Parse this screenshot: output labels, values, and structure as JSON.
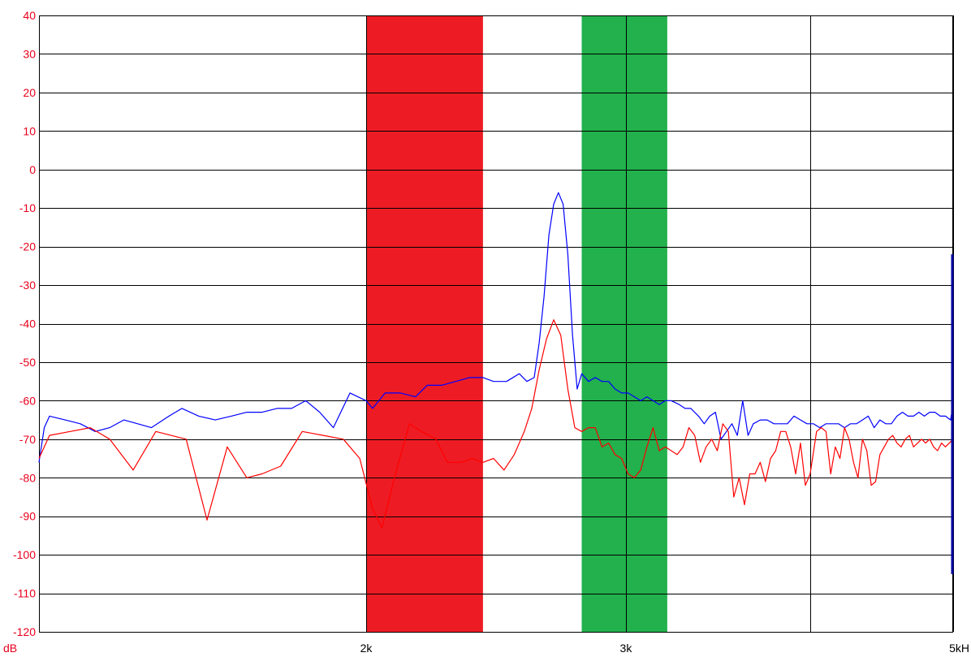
{
  "chart_data": {
    "type": "line",
    "title": "",
    "xlabel": "kH",
    "ylabel": "dB",
    "xlim": [
      1200,
      5000
    ],
    "ylim": [
      -120,
      40
    ],
    "x_scale": "log",
    "grid": true,
    "x_ticks": [
      {
        "value": 2000,
        "label": "2k"
      },
      {
        "value": 3000,
        "label": "3k"
      },
      {
        "value": 4000,
        "label": ""
      },
      {
        "value": 5000,
        "label": "5kH"
      }
    ],
    "y_ticks": [
      40,
      30,
      20,
      10,
      0,
      -10,
      -20,
      -30,
      -40,
      -50,
      -60,
      -70,
      -80,
      -90,
      -100,
      -110,
      -120
    ],
    "bands": [
      {
        "x_start": 2000,
        "x_end": 2400,
        "color": "#ed1c24"
      },
      {
        "x_start": 2800,
        "x_end": 3200,
        "color": "#22b14c"
      }
    ],
    "marker": {
      "x": 5000,
      "y_range": [
        -105,
        -22
      ],
      "color": "#0000a0"
    },
    "series": [
      {
        "color": "#0000ff",
        "points": [
          [
            1200,
            -76
          ],
          [
            1210,
            -67
          ],
          [
            1220,
            -64
          ],
          [
            1250,
            -65
          ],
          [
            1280,
            -66
          ],
          [
            1310,
            -68
          ],
          [
            1340,
            -67
          ],
          [
            1370,
            -65
          ],
          [
            1400,
            -66
          ],
          [
            1430,
            -67
          ],
          [
            1470,
            -64
          ],
          [
            1500,
            -62
          ],
          [
            1540,
            -64
          ],
          [
            1580,
            -65
          ],
          [
            1620,
            -64
          ],
          [
            1660,
            -63
          ],
          [
            1700,
            -63
          ],
          [
            1740,
            -62
          ],
          [
            1780,
            -62
          ],
          [
            1820,
            -60
          ],
          [
            1860,
            -63
          ],
          [
            1900,
            -67
          ],
          [
            1950,
            -58
          ],
          [
            2000,
            -60
          ],
          [
            2020,
            -62
          ],
          [
            2060,
            -58
          ],
          [
            2110,
            -58
          ],
          [
            2160,
            -59
          ],
          [
            2200,
            -56
          ],
          [
            2250,
            -56
          ],
          [
            2300,
            -55
          ],
          [
            2350,
            -54
          ],
          [
            2400,
            -54
          ],
          [
            2440,
            -55
          ],
          [
            2490,
            -55
          ],
          [
            2540,
            -53
          ],
          [
            2570,
            -55
          ],
          [
            2600,
            -54
          ],
          [
            2620,
            -45
          ],
          [
            2640,
            -33
          ],
          [
            2660,
            -17
          ],
          [
            2680,
            -9
          ],
          [
            2700,
            -6
          ],
          [
            2720,
            -9
          ],
          [
            2740,
            -22
          ],
          [
            2760,
            -43
          ],
          [
            2780,
            -57
          ],
          [
            2800,
            -53
          ],
          [
            2830,
            -55
          ],
          [
            2860,
            -54
          ],
          [
            2890,
            -55
          ],
          [
            2920,
            -55
          ],
          [
            2950,
            -57
          ],
          [
            2980,
            -58
          ],
          [
            3010,
            -58
          ],
          [
            3040,
            -59
          ],
          [
            3070,
            -60
          ],
          [
            3100,
            -59
          ],
          [
            3130,
            -60
          ],
          [
            3160,
            -61
          ],
          [
            3190,
            -60
          ],
          [
            3220,
            -60
          ],
          [
            3260,
            -61
          ],
          [
            3290,
            -62
          ],
          [
            3320,
            -62
          ],
          [
            3360,
            -64
          ],
          [
            3390,
            -66
          ],
          [
            3420,
            -64
          ],
          [
            3450,
            -63
          ],
          [
            3480,
            -70
          ],
          [
            3510,
            -68
          ],
          [
            3540,
            -66
          ],
          [
            3570,
            -69
          ],
          [
            3600,
            -60
          ],
          [
            3630,
            -69
          ],
          [
            3660,
            -66
          ],
          [
            3700,
            -65
          ],
          [
            3740,
            -65
          ],
          [
            3780,
            -66
          ],
          [
            3820,
            -66
          ],
          [
            3860,
            -66
          ],
          [
            3900,
            -64
          ],
          [
            3940,
            -65
          ],
          [
            3980,
            -66
          ],
          [
            4020,
            -66
          ],
          [
            4060,
            -67
          ],
          [
            4100,
            -66
          ],
          [
            4140,
            -66
          ],
          [
            4180,
            -66
          ],
          [
            4220,
            -67
          ],
          [
            4260,
            -66
          ],
          [
            4300,
            -66
          ],
          [
            4340,
            -65
          ],
          [
            4380,
            -64
          ],
          [
            4420,
            -67
          ],
          [
            4460,
            -65
          ],
          [
            4500,
            -66
          ],
          [
            4540,
            -66
          ],
          [
            4580,
            -64
          ],
          [
            4620,
            -63
          ],
          [
            4660,
            -64
          ],
          [
            4700,
            -64
          ],
          [
            4740,
            -63
          ],
          [
            4780,
            -64
          ],
          [
            4820,
            -63
          ],
          [
            4860,
            -63
          ],
          [
            4900,
            -64
          ],
          [
            4940,
            -64
          ],
          [
            4980,
            -65
          ],
          [
            5000,
            -61
          ]
        ]
      },
      {
        "color": "#ff0000",
        "points": [
          [
            1200,
            -75
          ],
          [
            1220,
            -69
          ],
          [
            1260,
            -68
          ],
          [
            1300,
            -67
          ],
          [
            1340,
            -70
          ],
          [
            1390,
            -78
          ],
          [
            1440,
            -68
          ],
          [
            1510,
            -70
          ],
          [
            1560,
            -91
          ],
          [
            1610,
            -72
          ],
          [
            1660,
            -80
          ],
          [
            1700,
            -79
          ],
          [
            1750,
            -77
          ],
          [
            1810,
            -68
          ],
          [
            1870,
            -69
          ],
          [
            1930,
            -70
          ],
          [
            1980,
            -75
          ],
          [
            2020,
            -88
          ],
          [
            2050,
            -93
          ],
          [
            2090,
            -80
          ],
          [
            2140,
            -66
          ],
          [
            2180,
            -68
          ],
          [
            2230,
            -70
          ],
          [
            2270,
            -76
          ],
          [
            2320,
            -76
          ],
          [
            2360,
            -75
          ],
          [
            2400,
            -76
          ],
          [
            2440,
            -75
          ],
          [
            2480,
            -78
          ],
          [
            2520,
            -74
          ],
          [
            2560,
            -68
          ],
          [
            2590,
            -62
          ],
          [
            2620,
            -52
          ],
          [
            2650,
            -44
          ],
          [
            2680,
            -39
          ],
          [
            2710,
            -43
          ],
          [
            2740,
            -57
          ],
          [
            2770,
            -67
          ],
          [
            2800,
            -68
          ],
          [
            2830,
            -67
          ],
          [
            2860,
            -67
          ],
          [
            2890,
            -72
          ],
          [
            2920,
            -71
          ],
          [
            2950,
            -74
          ],
          [
            2980,
            -75
          ],
          [
            3010,
            -79
          ],
          [
            3040,
            -80
          ],
          [
            3070,
            -78
          ],
          [
            3100,
            -72
          ],
          [
            3130,
            -67
          ],
          [
            3160,
            -73
          ],
          [
            3190,
            -72
          ],
          [
            3220,
            -73
          ],
          [
            3250,
            -74
          ],
          [
            3280,
            -72
          ],
          [
            3310,
            -67
          ],
          [
            3340,
            -69
          ],
          [
            3370,
            -76
          ],
          [
            3400,
            -72
          ],
          [
            3430,
            -70
          ],
          [
            3460,
            -73
          ],
          [
            3490,
            -66
          ],
          [
            3520,
            -68
          ],
          [
            3550,
            -85
          ],
          [
            3580,
            -80
          ],
          [
            3610,
            -87
          ],
          [
            3640,
            -79
          ],
          [
            3670,
            -79
          ],
          [
            3700,
            -76
          ],
          [
            3730,
            -81
          ],
          [
            3760,
            -75
          ],
          [
            3790,
            -73
          ],
          [
            3820,
            -68
          ],
          [
            3850,
            -68
          ],
          [
            3880,
            -72
          ],
          [
            3910,
            -79
          ],
          [
            3940,
            -71
          ],
          [
            3970,
            -82
          ],
          [
            4000,
            -79
          ],
          [
            4040,
            -68
          ],
          [
            4070,
            -67
          ],
          [
            4100,
            -68
          ],
          [
            4130,
            -79
          ],
          [
            4160,
            -72
          ],
          [
            4190,
            -75
          ],
          [
            4220,
            -67
          ],
          [
            4250,
            -70
          ],
          [
            4280,
            -76
          ],
          [
            4310,
            -80
          ],
          [
            4340,
            -70
          ],
          [
            4370,
            -73
          ],
          [
            4400,
            -82
          ],
          [
            4430,
            -81
          ],
          [
            4460,
            -74
          ],
          [
            4490,
            -72
          ],
          [
            4520,
            -70
          ],
          [
            4550,
            -69
          ],
          [
            4580,
            -71
          ],
          [
            4610,
            -72
          ],
          [
            4640,
            -70
          ],
          [
            4670,
            -69
          ],
          [
            4700,
            -72
          ],
          [
            4730,
            -71
          ],
          [
            4760,
            -70
          ],
          [
            4790,
            -71
          ],
          [
            4820,
            -70
          ],
          [
            4850,
            -72
          ],
          [
            4880,
            -73
          ],
          [
            4910,
            -71
          ],
          [
            4940,
            -72
          ],
          [
            4970,
            -71
          ],
          [
            5000,
            -70
          ]
        ]
      }
    ]
  }
}
